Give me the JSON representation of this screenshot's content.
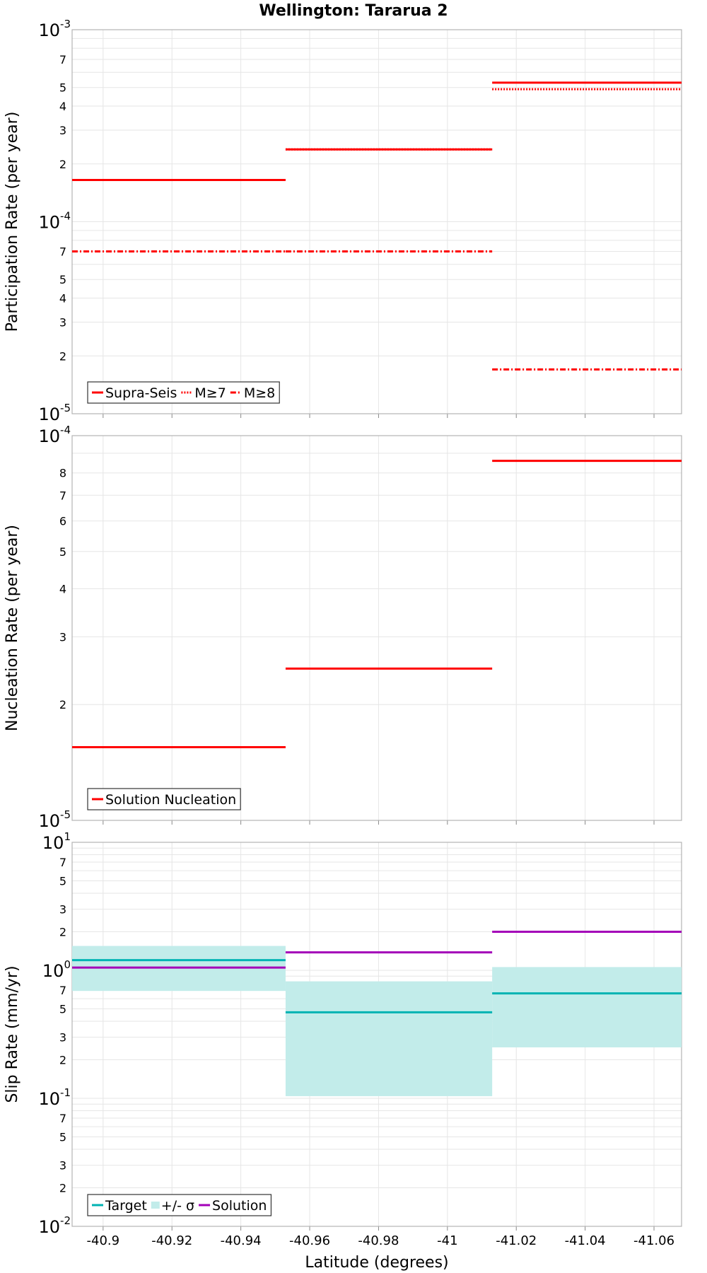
{
  "title": "Wellington: Tararua 2",
  "xlabel": "Latitude (degrees)",
  "x_ticks": [
    {
      "value": -40.9,
      "label": "-40.9"
    },
    {
      "value": -40.92,
      "label": "-40.92"
    },
    {
      "value": -40.94,
      "label": "-40.94"
    },
    {
      "value": -40.96,
      "label": "-40.96"
    },
    {
      "value": -40.98,
      "label": "-40.98"
    },
    {
      "value": -41.0,
      "label": "-41"
    },
    {
      "value": -41.02,
      "label": "-41.02"
    },
    {
      "value": -41.04,
      "label": "-41.04"
    },
    {
      "value": -41.06,
      "label": "-41.06"
    }
  ],
  "colors": {
    "red": "#ff0000",
    "teal": "#00b3b3",
    "band": "#c2ecea",
    "purple": "#a300b8",
    "grid": "#e6e6e6",
    "frame": "#b3b3b3"
  },
  "chart_data": [
    {
      "type": "line",
      "id": "participation",
      "title": "Wellington: Tararua 2",
      "ylabel": "Participation Rate (per year)",
      "yscale": "log",
      "ylim": [
        1e-05,
        0.001
      ],
      "xlim": [
        -40.891,
        -41.068
      ],
      "major_ticks": [
        {
          "value": 1e-05,
          "base": "10",
          "exp": "-5"
        },
        {
          "value": 0.0001,
          "base": "10",
          "exp": "-4"
        },
        {
          "value": 0.001,
          "base": "10",
          "exp": "-3"
        }
      ],
      "minor_labels": [
        "2",
        "3",
        "4",
        "5",
        "7"
      ],
      "legend": "bottom-left",
      "series": [
        {
          "name": "Supra-Seis",
          "style": "solid",
          "color": "#ff0000",
          "segments": [
            {
              "x": [
                -40.891,
                -40.953
              ],
              "y": 0.000165
            },
            {
              "x": [
                -40.953,
                -41.013
              ],
              "y": 0.000238
            },
            {
              "x": [
                -41.013,
                -41.068
              ],
              "y": 0.00053
            }
          ]
        },
        {
          "name": "M≥7",
          "style": "dotted",
          "color": "#ff0000",
          "segments": [
            {
              "x": [
                -40.891,
                -40.953
              ],
              "y": 0.000165
            },
            {
              "x": [
                -40.953,
                -41.013
              ],
              "y": 0.000238
            },
            {
              "x": [
                -41.013,
                -41.068
              ],
              "y": 0.00049
            }
          ]
        },
        {
          "name": "M≥8",
          "style": "dashdot",
          "color": "#ff0000",
          "segments": [
            {
              "x": [
                -40.891,
                -40.953
              ],
              "y": 7e-05
            },
            {
              "x": [
                -40.953,
                -41.013
              ],
              "y": 7e-05
            },
            {
              "x": [
                -41.013,
                -41.068
              ],
              "y": 1.7e-05
            }
          ]
        }
      ]
    },
    {
      "type": "line",
      "id": "nucleation",
      "ylabel": "Nucleation Rate (per year)",
      "yscale": "log",
      "ylim": [
        1e-05,
        0.0001
      ],
      "xlim": [
        -40.891,
        -41.068
      ],
      "major_ticks": [
        {
          "value": 1e-05,
          "base": "10",
          "exp": "-5"
        },
        {
          "value": 0.0001,
          "base": "10",
          "exp": "-4"
        }
      ],
      "minor_labels": [
        "2",
        "3",
        "4",
        "5",
        "6",
        "7",
        "8"
      ],
      "legend": "bottom-left",
      "series": [
        {
          "name": "Solution Nucleation",
          "style": "solid",
          "color": "#ff0000",
          "segments": [
            {
              "x": [
                -40.891,
                -40.953
              ],
              "y": 1.55e-05
            },
            {
              "x": [
                -40.953,
                -41.013
              ],
              "y": 2.48e-05
            },
            {
              "x": [
                -41.013,
                -41.068
              ],
              "y": 8.6e-05
            }
          ]
        }
      ]
    },
    {
      "type": "line",
      "id": "slip",
      "ylabel": "Slip Rate (mm/yr)",
      "yscale": "log",
      "ylim": [
        0.01,
        10
      ],
      "xlim": [
        -40.891,
        -41.068
      ],
      "major_ticks": [
        {
          "value": 0.01,
          "base": "10",
          "exp": "-2"
        },
        {
          "value": 0.1,
          "base": "10",
          "exp": "-1"
        },
        {
          "value": 1,
          "base": "10",
          "exp": "0"
        },
        {
          "value": 10,
          "base": "10",
          "exp": "1"
        }
      ],
      "minor_labels": [
        "2",
        "3",
        "5",
        "7"
      ],
      "legend": "bottom-left",
      "series": [
        {
          "name": "Target",
          "style": "solid",
          "color": "#00b3b3",
          "segments": [
            {
              "x": [
                -40.891,
                -40.953
              ],
              "y": 1.2
            },
            {
              "x": [
                -40.953,
                -41.013
              ],
              "y": 0.47
            },
            {
              "x": [
                -41.013,
                -41.068
              ],
              "y": 0.66
            }
          ]
        },
        {
          "name": "+/- σ",
          "style": "band",
          "color": "#c2ecea",
          "segments": [
            {
              "x": [
                -40.891,
                -40.953
              ],
              "lo": 0.69,
              "hi": 1.55
            },
            {
              "x": [
                -40.953,
                -41.013
              ],
              "lo": 0.104,
              "hi": 0.82
            },
            {
              "x": [
                -41.013,
                -41.068
              ],
              "lo": 0.25,
              "hi": 1.06
            }
          ]
        },
        {
          "name": "Solution",
          "style": "solid",
          "color": "#a300b8",
          "segments": [
            {
              "x": [
                -40.891,
                -40.953
              ],
              "y": 1.05
            },
            {
              "x": [
                -40.953,
                -41.013
              ],
              "y": 1.38
            },
            {
              "x": [
                -41.013,
                -41.068
              ],
              "y": 2.0
            }
          ]
        }
      ]
    }
  ]
}
